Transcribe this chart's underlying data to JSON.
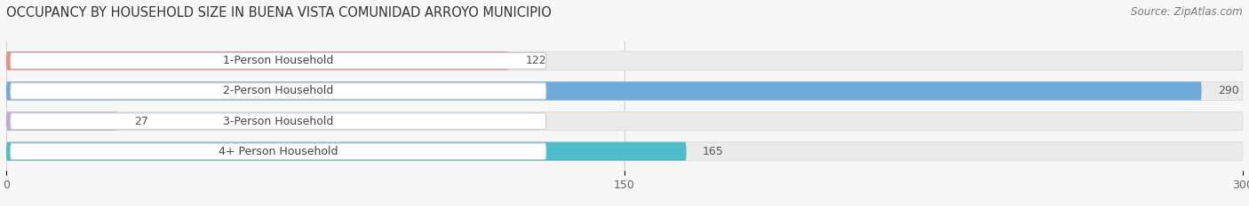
{
  "title": "OCCUPANCY BY HOUSEHOLD SIZE IN BUENA VISTA COMUNIDAD ARROYO MUNICIPIO",
  "source": "Source: ZipAtlas.com",
  "categories": [
    "1-Person Household",
    "2-Person Household",
    "3-Person Household",
    "4+ Person Household"
  ],
  "values": [
    122,
    290,
    27,
    165
  ],
  "bar_colors": [
    "#e8908a",
    "#6faad8",
    "#c5a8d0",
    "#4dbec8"
  ],
  "bar_bg_color": "#ebebeb",
  "label_bg_color": "#ffffff",
  "label_border_color": "#cccccc",
  "xlim": [
    0,
    300
  ],
  "xticks": [
    0,
    150,
    300
  ],
  "title_fontsize": 10.5,
  "label_fontsize": 9,
  "value_fontsize": 9,
  "source_fontsize": 8.5,
  "background_color": "#f7f7f7",
  "grid_color": "#d0d0d0",
  "value_290_color": "#ffffff",
  "value_other_color": "#555555"
}
